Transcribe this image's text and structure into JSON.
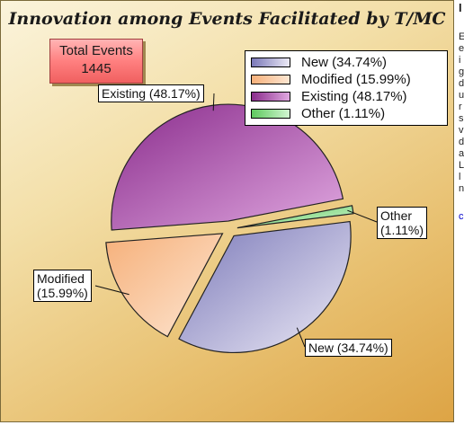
{
  "chart_data": {
    "type": "pie",
    "title": "Innovation among Events Facilitated by T/MC",
    "total": {
      "label": "Total Events",
      "value": "1445"
    },
    "slices": [
      {
        "name": "New",
        "value": 34.74,
        "legend": "New (34.74%)",
        "callout": "New (34.74%)",
        "colors": [
          "#7a78b8",
          "#eceaf6"
        ]
      },
      {
        "name": "Modified",
        "value": 15.99,
        "legend": "Modified (15.99%)",
        "callout": "Modified\n(15.99%)",
        "colors": [
          "#f6b07a",
          "#fde6d2"
        ]
      },
      {
        "name": "Existing",
        "value": 48.17,
        "legend": "Existing (48.17%)",
        "callout": "Existing (48.17%)",
        "colors": [
          "#8a2c8c",
          "#e0a8e0"
        ]
      },
      {
        "name": "Other",
        "value": 1.11,
        "legend": "Other (1.11%)",
        "callout": "Other\n(1.11%)",
        "colors": [
          "#5ec85e",
          "#d2f6d2"
        ]
      }
    ],
    "legend_position": "top-right"
  },
  "side_panel": {
    "header": "I",
    "lines": [
      "E",
      "e",
      "i",
      "g",
      "d",
      "u",
      "r",
      "s",
      "v",
      "d",
      "a",
      "L",
      "l",
      "n"
    ],
    "link": "c"
  }
}
